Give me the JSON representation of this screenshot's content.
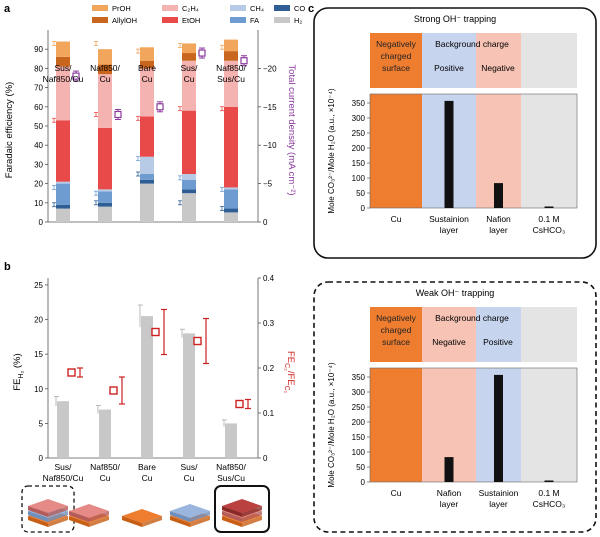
{
  "colors": {
    "PrOH": "#f2a65c",
    "AllylOH": "#c9661d",
    "C2H4": "#f4b3b0",
    "EtOH": "#e84a4a",
    "CH4": "#b7cbe6",
    "FA": "#6e9bd0",
    "CO": "#2f5e94",
    "H2": "#c8c8c8",
    "current": "#8a3a9c",
    "ratio": "#cc2222",
    "cu_orange": "#ee7d30",
    "blue_layer": "#c6d4ee",
    "pink_layer": "#f7c3b4",
    "gray_layer": "#e4e4e4",
    "bar_black": "#111111"
  },
  "panel_a": {
    "label": "a",
    "ylabel_left": "Faradaic efficiency (%)",
    "ylabel_right": "Total current density (mA cm⁻²)",
    "left_ticks": [
      "0",
      "10",
      "20",
      "30",
      "40",
      "50",
      "60",
      "70",
      "80",
      "90"
    ],
    "right_ticks": [
      "0",
      "−5",
      "−10",
      "−15",
      "−20"
    ],
    "legend": [
      "PrOH",
      "C₂H₄",
      "CH₄",
      "CO",
      "AllylOH",
      "EtOH",
      "FA",
      "H₂"
    ]
  },
  "panel_b": {
    "label": "b",
    "ylabel_left": "FE",
    "ylabel_left_sub": "H₂",
    "ylabel_left_unit": " (%)",
    "ylabel_right": "FE",
    "ylabel_right_sub1": "C₂",
    "ylabel_right_mid": "/FE",
    "ylabel_right_sub2": "C₁",
    "left_ticks": [
      "0",
      "5",
      "10",
      "15",
      "20",
      "25"
    ],
    "right_ticks": [
      "0",
      "0.1",
      "0.2",
      "0.3",
      "0.4"
    ]
  },
  "panel_c": {
    "label": "c",
    "top": {
      "title": "Strong OH⁻ trapping",
      "surface_label": "Negatively charged surface",
      "background_label": "Background charge",
      "charge_1": "Positive",
      "charge_2": "Negative",
      "bottom_labels": [
        "Cu",
        "Sustainion layer",
        "Nafion layer",
        "0.1 M CsHCO₃"
      ]
    },
    "bottom": {
      "title": "Weak OH⁻ trapping",
      "surface_label": "Negatively charged surface",
      "background_label": "Background charge",
      "charge_1": "Negative",
      "charge_2": "Positive",
      "bottom_labels": [
        "Cu",
        "Nafion layer",
        "Sustainion layer",
        "0.1 M CsHCO₃"
      ]
    },
    "ylabel": "Mole CO₃²⁻/Mole H₂O (a.u., ×10⁻⁴)",
    "ticks": [
      "0",
      "50",
      "100",
      "150",
      "200",
      "250",
      "300",
      "350"
    ]
  },
  "chart_data": [
    {
      "type": "bar",
      "panel": "a",
      "categories": [
        "Sus/ Naf850/Cu",
        "Naf850/ Cu",
        "Bare Cu",
        "Sus/ Cu",
        "Naf850/ Sus/Cu"
      ],
      "ylim": [
        0,
        100
      ],
      "y2lim": [
        0,
        -25
      ],
      "series": [
        {
          "name": "H₂",
          "values": [
            7,
            8,
            20,
            15,
            5
          ]
        },
        {
          "name": "CO",
          "values": [
            2,
            2,
            2,
            2,
            2
          ]
        },
        {
          "name": "FA",
          "values": [
            11,
            6,
            3,
            5,
            10
          ]
        },
        {
          "name": "CH₄",
          "values": [
            1,
            1,
            9,
            3,
            1
          ]
        },
        {
          "name": "EtOH",
          "values": [
            32,
            32,
            21,
            33,
            42
          ]
        },
        {
          "name": "C₂H₄",
          "values": [
            28,
            28,
            25,
            26,
            24
          ]
        },
        {
          "name": "AllylOH",
          "values": [
            5,
            5,
            4,
            4,
            5
          ]
        },
        {
          "name": "PrOH",
          "values": [
            8,
            8,
            7,
            5,
            6
          ]
        }
      ],
      "current_density": [
        -19,
        -14,
        -15,
        -22,
        -21
      ],
      "error_markers": [
        {
          "top": 93,
          "etoh": 53,
          "fa": 18,
          "co": 9
        },
        {
          "top": 93,
          "etoh": 56,
          "fa": 15,
          "co": 10
        },
        {
          "top": 89,
          "etoh": 54,
          "fa": 33,
          "co": 25
        },
        {
          "top": 92,
          "etoh": 59,
          "fa": 23,
          "co": 10
        },
        {
          "top": 91,
          "etoh": 59,
          "fa": 17,
          "co": 7
        }
      ]
    },
    {
      "type": "bar",
      "panel": "b",
      "categories": [
        "Sus/ Naf850/Cu",
        "Naf850/ Cu",
        "Bare Cu",
        "Sus/ Cu",
        "Naf850/ Sus/Cu"
      ],
      "ylim": [
        0,
        26
      ],
      "y2lim": [
        0,
        0.4
      ],
      "series": [
        {
          "name": "FE H₂",
          "values": [
            8.2,
            7.0,
            20.5,
            18.0,
            5.0
          ],
          "err": [
            0.7,
            0.6,
            1.6,
            0.6,
            0.5
          ]
        },
        {
          "name": "FE C₂/FE C₁",
          "values": [
            0.19,
            0.15,
            0.28,
            0.26,
            0.12
          ],
          "err": [
            0.01,
            0.03,
            0.05,
            0.05,
            0.01
          ]
        }
      ]
    },
    {
      "type": "bar",
      "panel": "c-top",
      "categories": [
        "Cu",
        "Sustainion layer",
        "Nafion layer",
        "0.1 M CsHCO₃"
      ],
      "values": [
        0,
        357,
        83,
        5
      ],
      "ylim": [
        0,
        380
      ]
    },
    {
      "type": "bar",
      "panel": "c-bottom",
      "categories": [
        "Cu",
        "Nafion layer",
        "Sustainion layer",
        "0.1 M CsHCO₃"
      ],
      "values": [
        0,
        83,
        357,
        5
      ],
      "ylim": [
        0,
        380
      ]
    }
  ]
}
